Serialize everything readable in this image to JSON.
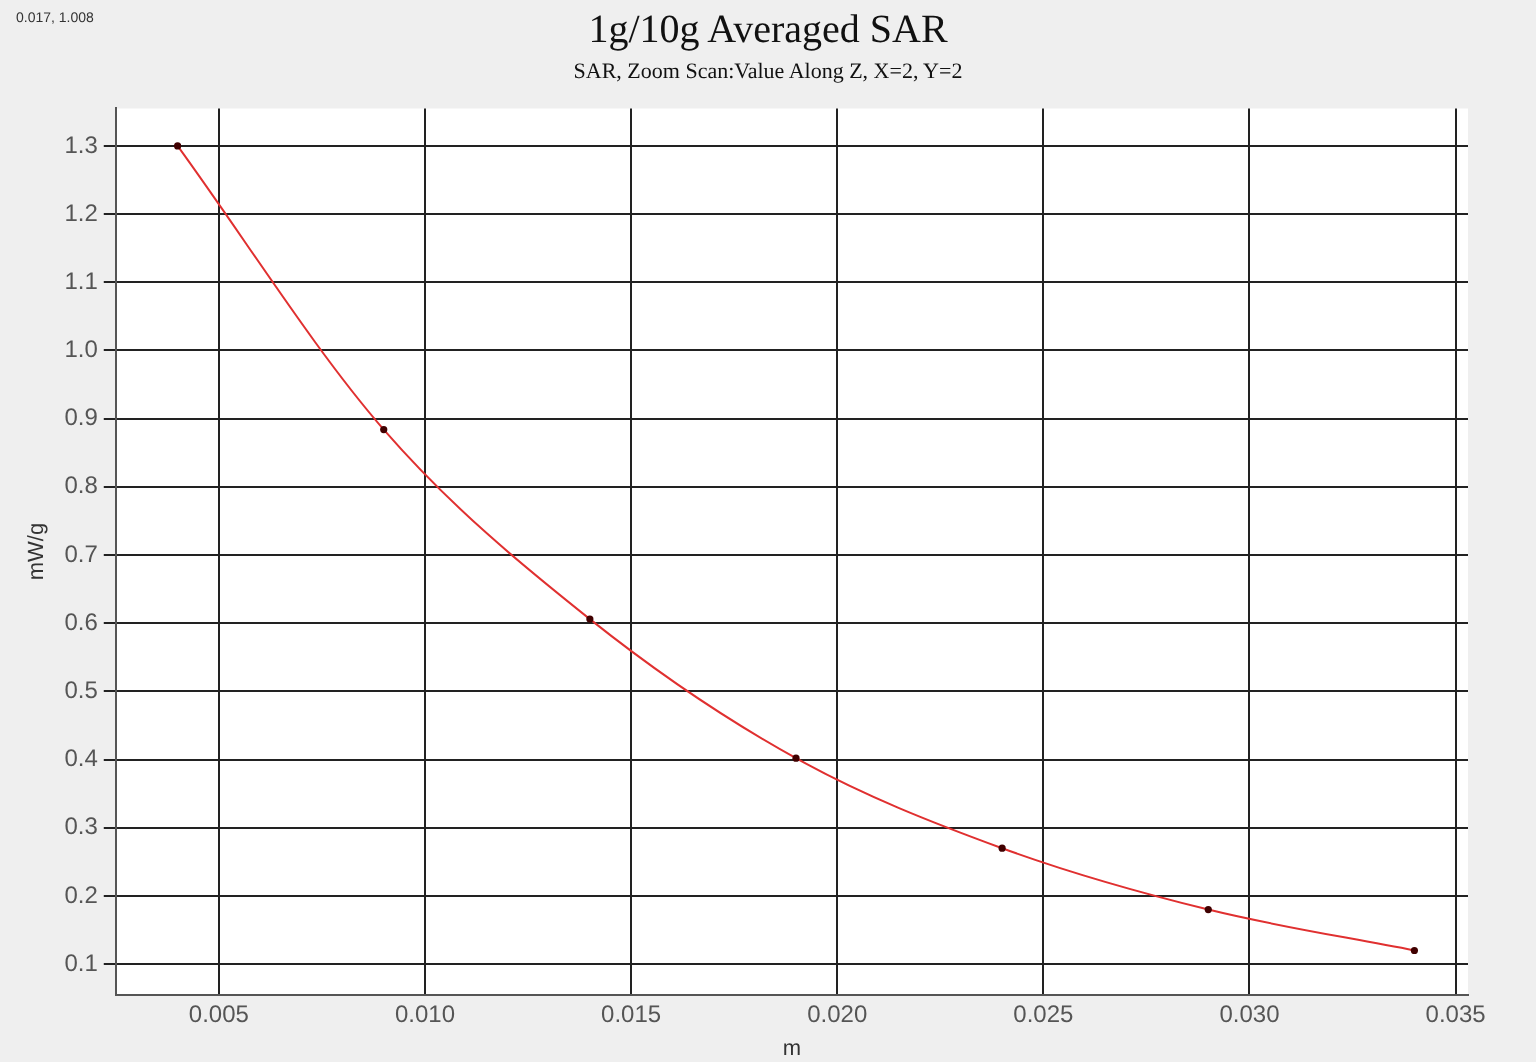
{
  "chart_data": {
    "type": "line",
    "title": "1g/10g Averaged SAR",
    "subtitle": "SAR, Zoom Scan:Value Along Z, X=2, Y=2",
    "xlabel": "m",
    "ylabel": "mW/g",
    "annotations": [
      "0.017, 1.008"
    ],
    "x": [
      0.004,
      0.009,
      0.014,
      0.019,
      0.024,
      0.029,
      0.034
    ],
    "series": [
      {
        "color": "#e03030",
        "values": [
          1.3,
          0.884,
          0.606,
          0.402,
          0.27,
          0.18,
          0.12
        ]
      }
    ],
    "xlim": [
      0.0025,
      0.0353
    ],
    "xticks": [
      {
        "value": 0.005,
        "label": "0.005"
      },
      {
        "value": 0.01,
        "label": "0.010"
      },
      {
        "value": 0.015,
        "label": "0.015"
      },
      {
        "value": 0.02,
        "label": "0.020"
      },
      {
        "value": 0.025,
        "label": "0.025"
      },
      {
        "value": 0.03,
        "label": "0.030"
      },
      {
        "value": 0.035,
        "label": "0.035"
      }
    ],
    "ylim": [
      0.055,
      1.355
    ],
    "yticks": [
      0.1,
      0.2,
      0.3,
      0.4,
      0.5,
      0.6,
      0.7,
      0.8,
      0.9,
      {
        "value": 1,
        "label": "1.0"
      },
      1.1,
      1.2,
      1.3
    ],
    "grid": true,
    "legend": false,
    "marker": "circle",
    "line_style": "solid"
  }
}
